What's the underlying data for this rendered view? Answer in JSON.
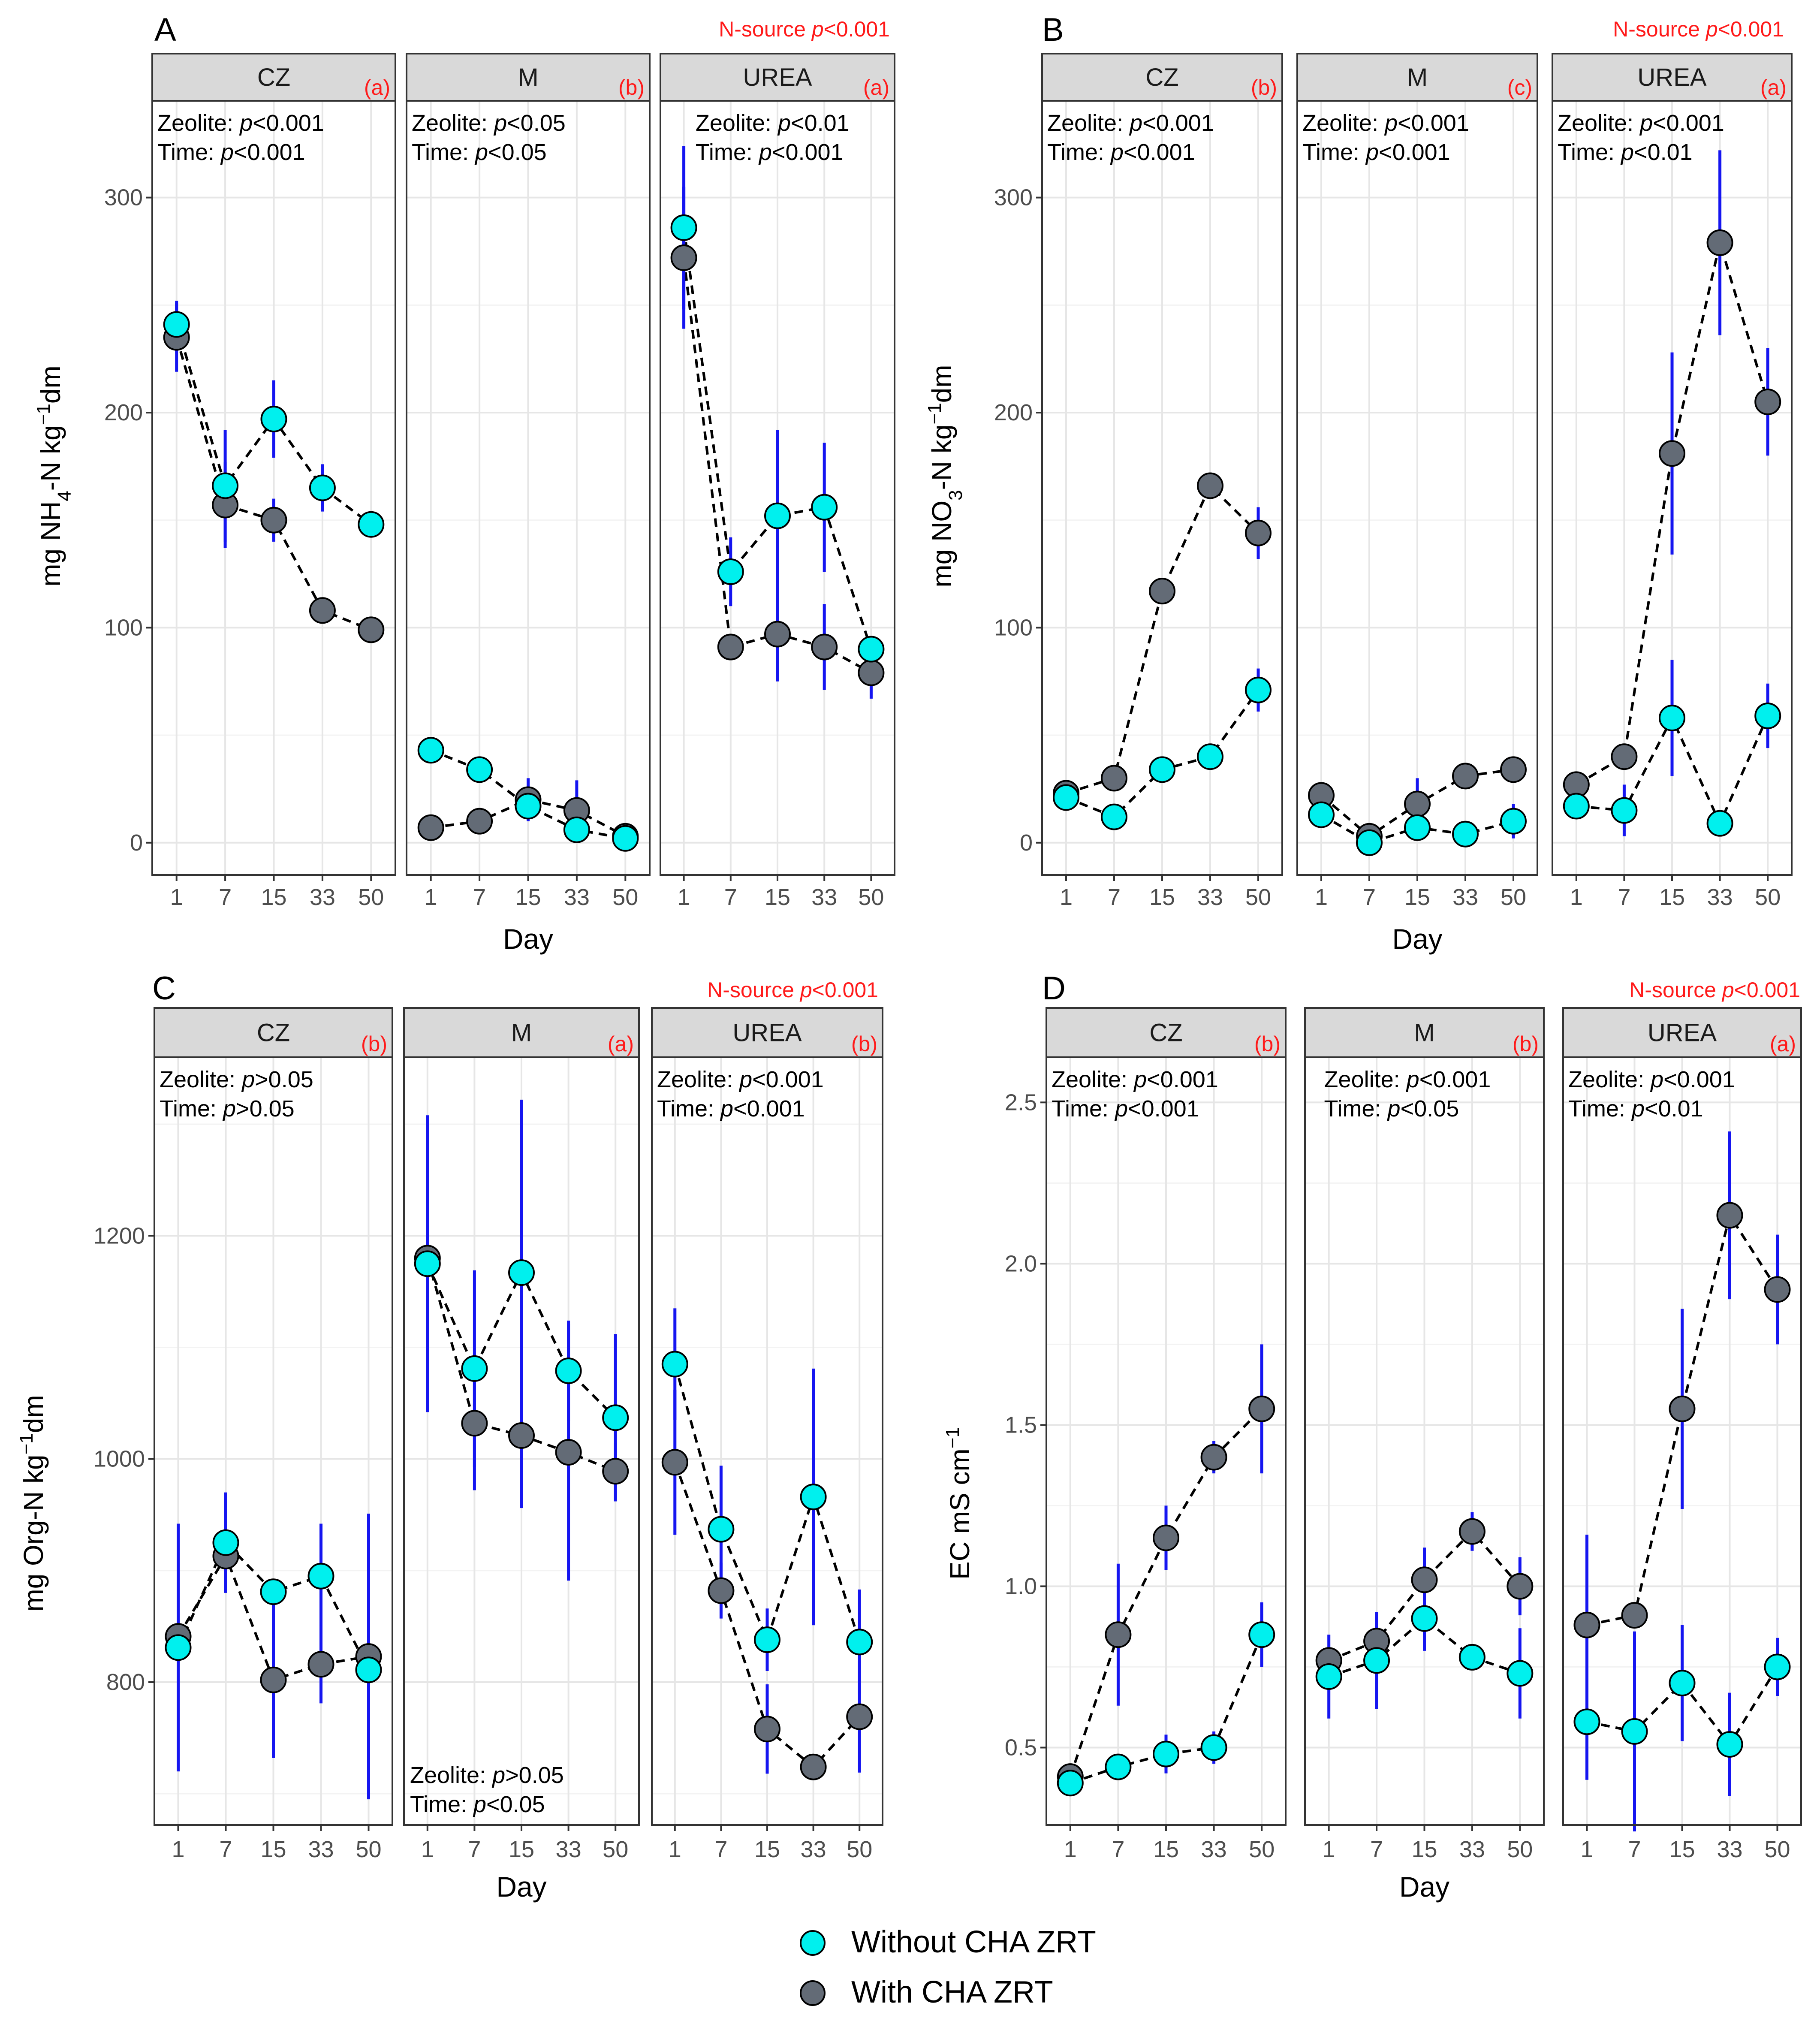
{
  "colors": {
    "without": "#00f0ee",
    "with": "#636b76",
    "errorbar": "#1515f0",
    "accent_red": "#ff1a1a",
    "strip_bg": "#d9d9d9",
    "grid_major": "#e6e6e6",
    "grid_minor": "#f3f3f3"
  },
  "legend": {
    "without_label": "Without CHA ZRT",
    "with_label": "With CHA ZRT"
  },
  "chart_data": [
    {
      "type": "line",
      "panel_label": "A",
      "ylabel": "mg NH4-N kg-1dm",
      "xlabel": "Day",
      "days": [
        "1",
        "7",
        "15",
        "33",
        "50"
      ],
      "ylim": [
        -15,
        345
      ],
      "yticks": [
        0,
        100,
        200,
        300
      ],
      "nsource_text": "N-source p<0.001",
      "facets": [
        {
          "name": "CZ",
          "letter": "(a)",
          "stats": [
            "Zeolite: p<0.001",
            "Time: p<0.001"
          ],
          "stats_pos": "top-left",
          "series": [
            {
              "name": "Without CHA ZRT",
              "values": [
                241,
                166,
                197,
                165,
                148
              ],
              "err": [
                11,
                26,
                18,
                11,
                0
              ]
            },
            {
              "name": "With CHA ZRT",
              "values": [
                235,
                157,
                150,
                108,
                99
              ],
              "err": [
                16,
                20,
                10,
                0,
                0
              ]
            }
          ]
        },
        {
          "name": "M",
          "letter": "(b)",
          "stats": [
            "Zeolite: p<0.05",
            "Time: p<0.05"
          ],
          "stats_pos": "top-left",
          "series": [
            {
              "name": "Without CHA ZRT",
              "values": [
                43,
                34,
                17,
                6,
                2
              ],
              "err": [
                0,
                0,
                0,
                0,
                0
              ]
            },
            {
              "name": "With CHA ZRT",
              "values": [
                7,
                10,
                20,
                15,
                3
              ],
              "err": [
                0,
                0,
                10,
                14,
                0
              ]
            }
          ]
        },
        {
          "name": "UREA",
          "letter": "(a)",
          "stats": [
            "Zeolite: p<0.01",
            "Time: p<0.001"
          ],
          "stats_pos": "top-right",
          "series": [
            {
              "name": "Without CHA ZRT",
              "values": [
                286,
                126,
                152,
                156,
                90
              ],
              "err": [
                38,
                16,
                40,
                30,
                0
              ]
            },
            {
              "name": "With CHA ZRT",
              "values": [
                272,
                91,
                97,
                91,
                79
              ],
              "err": [
                33,
                0,
                22,
                20,
                12
              ]
            }
          ]
        }
      ]
    },
    {
      "type": "line",
      "panel_label": "B",
      "ylabel": "mg NO3-N kg-1dm",
      "xlabel": "Day",
      "days": [
        "1",
        "7",
        "15",
        "33",
        "50"
      ],
      "ylim": [
        -15,
        345
      ],
      "yticks": [
        0,
        100,
        200,
        300
      ],
      "nsource_text": "N-source p<0.001",
      "facets": [
        {
          "name": "CZ",
          "letter": "(b)",
          "stats": [
            "Zeolite: p<0.001",
            "Time: p<0.001"
          ],
          "stats_pos": "top-left",
          "series": [
            {
              "name": "Without CHA ZRT",
              "values": [
                21,
                12,
                34,
                40,
                71
              ],
              "err": [
                0,
                0,
                0,
                0,
                10
              ]
            },
            {
              "name": "With CHA ZRT",
              "values": [
                23,
                30,
                117,
                166,
                144
              ],
              "err": [
                0,
                0,
                0,
                0,
                12
              ]
            }
          ]
        },
        {
          "name": "M",
          "letter": "(c)",
          "stats": [
            "Zeolite: p<0.001",
            "Time: p<0.001"
          ],
          "stats_pos": "top-left",
          "series": [
            {
              "name": "Without CHA ZRT",
              "values": [
                13,
                0,
                7,
                4,
                10
              ],
              "err": [
                0,
                0,
                0,
                0,
                8
              ]
            },
            {
              "name": "With CHA ZRT",
              "values": [
                22,
                3,
                18,
                31,
                34
              ],
              "err": [
                0,
                0,
                12,
                0,
                0
              ]
            }
          ]
        },
        {
          "name": "UREA",
          "letter": "(a)",
          "stats": [
            "Zeolite: p<0.001",
            "Time: p<0.01"
          ],
          "stats_pos": "top-left",
          "series": [
            {
              "name": "Without CHA ZRT",
              "values": [
                17,
                15,
                58,
                9,
                59
              ],
              "err": [
                0,
                12,
                27,
                0,
                15
              ]
            },
            {
              "name": "With CHA ZRT",
              "values": [
                27,
                40,
                181,
                279,
                205
              ],
              "err": [
                0,
                0,
                47,
                43,
                25
              ]
            }
          ]
        }
      ]
    },
    {
      "type": "line",
      "panel_label": "C",
      "ylabel": "mg Org-N kg-1dm",
      "xlabel": "Day",
      "days": [
        "1",
        "7",
        "15",
        "33",
        "50"
      ],
      "ylim": [
        672,
        1360
      ],
      "yticks": [
        800,
        1000,
        1200
      ],
      "nsource_text": "N-source p<0.001",
      "facets": [
        {
          "name": "CZ",
          "letter": "(b)",
          "stats": [
            "Zeolite: p>0.05",
            "Time: p>0.05"
          ],
          "stats_pos": "top-left",
          "series": [
            {
              "name": "Without CHA ZRT",
              "values": [
                831,
                925,
                881,
                895,
                811
              ],
              "err": [
                111,
                45,
                0,
                47,
                0
              ]
            },
            {
              "name": "With CHA ZRT",
              "values": [
                841,
                913,
                802,
                816,
                823
              ],
              "err": [
                0,
                0,
                70,
                35,
                128
              ]
            }
          ]
        },
        {
          "name": "M",
          "letter": "(a)",
          "stats": [
            "Zeolite: p>0.05",
            "Time: p<0.05"
          ],
          "stats_pos": "bottom-left",
          "series": [
            {
              "name": "Without CHA ZRT",
              "values": [
                1175,
                1081,
                1167,
                1079,
                1037
              ],
              "err": [
                133,
                88,
                155,
                45,
                75
              ]
            },
            {
              "name": "With CHA ZRT",
              "values": [
                1180,
                1032,
                1021,
                1006,
                989
              ],
              "err": [
                0,
                60,
                65,
                115,
                25
              ]
            }
          ]
        },
        {
          "name": "UREA",
          "letter": "(b)",
          "stats": [
            "Zeolite: p<0.001",
            "Time: p<0.001"
          ],
          "stats_pos": "top-left",
          "series": [
            {
              "name": "Without CHA ZRT",
              "values": [
                1085,
                937,
                838,
                966,
                836
              ],
              "err": [
                50,
                57,
                28,
                115,
                47
              ]
            },
            {
              "name": "With CHA ZRT",
              "values": [
                997,
                882,
                758,
                724,
                769
              ],
              "err": [
                65,
                25,
                40,
                0,
                50
              ]
            }
          ]
        }
      ]
    },
    {
      "type": "line",
      "panel_label": "D",
      "ylabel": "EC mS cm-1",
      "xlabel": "Day",
      "days": [
        "1",
        "7",
        "15",
        "33",
        "50"
      ],
      "ylim": [
        0.26,
        2.64
      ],
      "yticks": [
        0.5,
        1.0,
        1.5,
        2.0,
        2.5
      ],
      "nsource_text": "N-source p<0.001",
      "facets": [
        {
          "name": "CZ",
          "letter": "(b)",
          "stats": [
            "Zeolite: p<0.001",
            "Time: p<0.001"
          ],
          "stats_pos": "top-left",
          "series": [
            {
              "name": "Without CHA ZRT",
              "values": [
                0.39,
                0.44,
                0.48,
                0.5,
                0.85
              ],
              "err": [
                0,
                0,
                0.06,
                0.05,
                0.1
              ]
            },
            {
              "name": "With CHA ZRT",
              "values": [
                0.41,
                0.85,
                1.15,
                1.4,
                1.55
              ],
              "err": [
                0.04,
                0.22,
                0.1,
                0.05,
                0.2
              ]
            }
          ]
        },
        {
          "name": "M",
          "letter": "(b)",
          "stats": [
            "Zeolite: p<0.001",
            "Time: p<0.05"
          ],
          "stats_pos": "top-center",
          "series": [
            {
              "name": "Without CHA ZRT",
              "values": [
                0.72,
                0.77,
                0.9,
                0.78,
                0.73
              ],
              "err": [
                0.13,
                0.15,
                0.1,
                0,
                0.14
              ]
            },
            {
              "name": "With CHA ZRT",
              "values": [
                0.77,
                0.83,
                1.02,
                1.17,
                1.0
              ],
              "err": [
                0,
                0,
                0.1,
                0.06,
                0.09
              ]
            }
          ]
        },
        {
          "name": "UREA",
          "letter": "(a)",
          "stats": [
            "Zeolite: p<0.001",
            "Time: p<0.01"
          ],
          "stats_pos": "top-left",
          "series": [
            {
              "name": "Without CHA ZRT",
              "values": [
                0.58,
                0.55,
                0.7,
                0.51,
                0.75
              ],
              "err": [
                0.18,
                0.31,
                0.18,
                0.16,
                0.09
              ]
            },
            {
              "name": "With CHA ZRT",
              "values": [
                0.88,
                0.91,
                1.55,
                2.15,
                1.92
              ],
              "err": [
                0.28,
                0,
                0.31,
                0.26,
                0.17
              ]
            }
          ]
        }
      ]
    }
  ]
}
